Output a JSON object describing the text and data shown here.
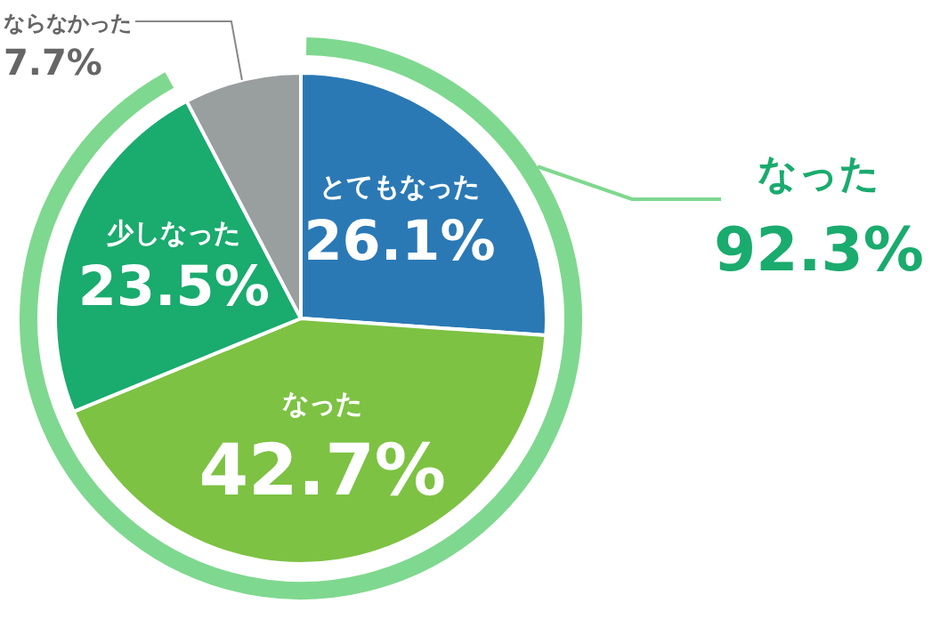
{
  "chart_data": {
    "type": "pie",
    "categories": [
      "とてもなった",
      "なった",
      "少しなった",
      "ならなかった"
    ],
    "values": [
      26.1,
      42.7,
      23.5,
      7.7
    ],
    "colors": [
      "#2a79b5",
      "#7dc243",
      "#1aab6e",
      "#999e9e"
    ],
    "value_labels": [
      "26.1%",
      "42.7%",
      "23.5%",
      "7.7%"
    ],
    "annotations": [
      "なった",
      "92.3%"
    ]
  }
}
